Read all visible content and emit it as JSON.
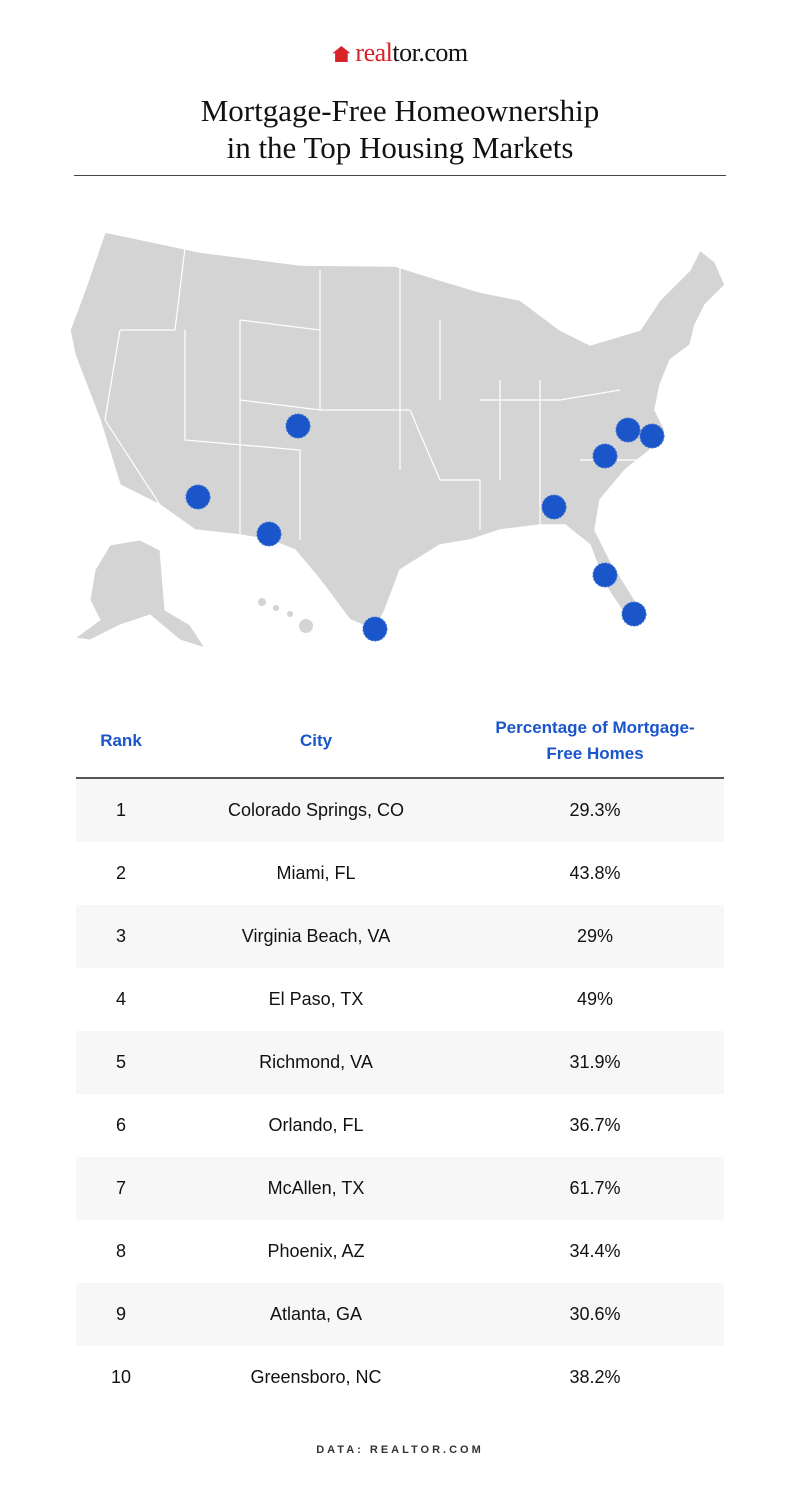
{
  "logo": {
    "text_red": "real",
    "text_dark": "tor.com"
  },
  "title": {
    "line1": "Mortgage-Free Homeownership",
    "line2": "in the Top Housing Markets"
  },
  "colors": {
    "accent": "#1a56c9",
    "brand": "#d92228",
    "map_fill": "#d4d4d4"
  },
  "table": {
    "headers": {
      "rank": "Rank",
      "city": "City",
      "pct": "Percentage of Mortgage-Free Homes"
    },
    "rows": [
      {
        "rank": "1",
        "city": "Colorado Springs, CO",
        "pct": "29.3%"
      },
      {
        "rank": "2",
        "city": "Miami, FL",
        "pct": "43.8%"
      },
      {
        "rank": "3",
        "city": "Virginia Beach, VA",
        "pct": "29%"
      },
      {
        "rank": "4",
        "city": "El Paso, TX",
        "pct": "49%"
      },
      {
        "rank": "5",
        "city": "Richmond, VA",
        "pct": "31.9%"
      },
      {
        "rank": "6",
        "city": "Orlando, FL",
        "pct": "36.7%"
      },
      {
        "rank": "7",
        "city": "McAllen, TX",
        "pct": "61.7%"
      },
      {
        "rank": "8",
        "city": "Phoenix, AZ",
        "pct": "34.4%"
      },
      {
        "rank": "9",
        "city": "Atlanta, GA",
        "pct": "30.6%"
      },
      {
        "rank": "10",
        "city": "Greensboro, NC",
        "pct": "38.2%"
      }
    ]
  },
  "footer": "DATA: REALTOR.COM"
}
